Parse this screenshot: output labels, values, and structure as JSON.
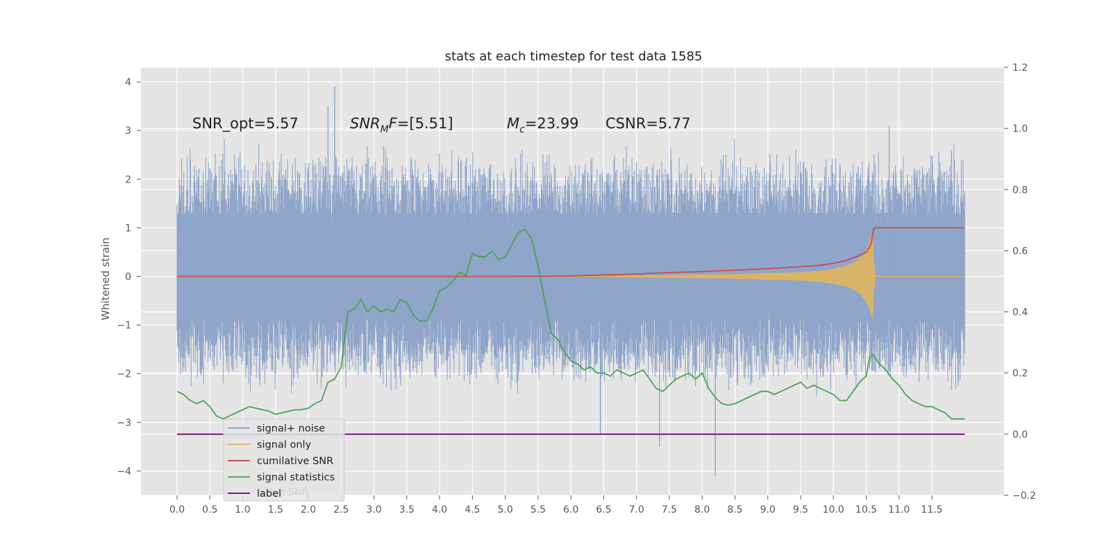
{
  "chart_data": {
    "type": "line",
    "title": "stats at each timestep for test data 1585",
    "ylabel": "Whitened strain",
    "xlabel": "",
    "xlim": [
      -0.55,
      12.6
    ],
    "ylim": [
      -4.5,
      4.3
    ],
    "ylim_right": [
      -0.2,
      1.2
    ],
    "grid": true,
    "legend_position": "lower-left",
    "x_ticks": [
      "0.0",
      "0.5",
      "1.0",
      "1.5",
      "2.0",
      "2.5",
      "3.0",
      "3.5",
      "4.0",
      "4.5",
      "5.0",
      "5.5",
      "6.0",
      "6.5",
      "7.0",
      "7.5",
      "8.0",
      "8.5",
      "9.0",
      "9.5",
      "10.0",
      "10.5",
      "11.0",
      "11.5"
    ],
    "y_ticks_left": [
      "−4",
      "−3",
      "−2",
      "−1",
      "0",
      "1",
      "2",
      "3",
      "4"
    ],
    "y_ticks_right": [
      "−0.2",
      "0.0",
      "0.2",
      "0.4",
      "0.6",
      "0.8",
      "1.0",
      "1.2"
    ],
    "annotations": {
      "snr_opt_label": "SNR_opt=5.57",
      "snr_mf_symbol": "SNR",
      "snr_mf_subscript": "M",
      "snr_mf_symbol2": "F",
      "snr_mf_value": "=[5.51]",
      "mc_symbol": "M",
      "mc_subscript": "c",
      "mc_value": "=23.99",
      "csnr_label": "CSNR=5.77"
    },
    "legend": {
      "items": [
        "signal+ noise",
        "signal only",
        "cumilative SNR",
        "signal statistics",
        "label"
      ],
      "hidden_overlap_text": "lative SNR"
    },
    "colors": {
      "noise": "#8fa5c9",
      "signal": "#e5b55a",
      "cumulative": "#cb4b4b",
      "statistics": "#4aa356",
      "label": "#7a1a7a",
      "axes_bg": "#e5e5e5",
      "grid": "#ffffff"
    },
    "series": [
      {
        "name": "signal+ noise",
        "axis": "left",
        "x_range": [
          0.0,
          12.0
        ],
        "typical_band": [
          -2.0,
          2.3
        ],
        "extremes": [
          [
            2.4,
            3.9
          ],
          [
            2.3,
            3.5
          ],
          [
            7.35,
            -3.5
          ],
          [
            8.2,
            -4.1
          ],
          [
            6.0,
            1.2
          ],
          [
            6.0,
            -1.0
          ],
          [
            6.45,
            -3.25
          ],
          [
            10.85,
            3.1
          ],
          [
            11.8,
            2.6
          ]
        ]
      },
      {
        "name": "signal only",
        "axis": "left",
        "envelope_x": [
          6.5,
          7.5,
          8.5,
          9.0,
          9.5,
          9.8,
          10.0,
          10.2,
          10.3,
          10.4,
          10.5,
          10.55,
          10.58,
          10.6,
          10.62,
          10.65,
          12.0
        ],
        "envelope_amp": [
          0.01,
          0.03,
          0.05,
          0.07,
          0.09,
          0.12,
          0.16,
          0.22,
          0.28,
          0.38,
          0.55,
          0.7,
          0.85,
          0.93,
          0.3,
          0.0,
          0.0
        ]
      },
      {
        "name": "cumilative SNR",
        "axis": "left",
        "x": [
          0.0,
          2.0,
          4.0,
          5.0,
          6.0,
          6.5,
          7.0,
          7.5,
          8.0,
          8.5,
          9.0,
          9.5,
          9.8,
          10.0,
          10.2,
          10.3,
          10.4,
          10.5,
          10.55,
          10.58,
          10.6,
          10.62,
          12.0
        ],
        "y": [
          0.0,
          0.0,
          0.0,
          0.0,
          0.01,
          0.03,
          0.05,
          0.08,
          0.1,
          0.13,
          0.16,
          0.2,
          0.23,
          0.27,
          0.33,
          0.38,
          0.43,
          0.5,
          0.6,
          0.7,
          0.9,
          1.0,
          1.0
        ]
      },
      {
        "name": "signal statistics",
        "axis": "right",
        "x": [
          0.0,
          0.1,
          0.15,
          0.2,
          0.3,
          0.4,
          0.5,
          0.6,
          0.7,
          0.8,
          0.9,
          1.0,
          1.1,
          1.2,
          1.3,
          1.4,
          1.5,
          1.6,
          1.7,
          1.8,
          1.9,
          2.0,
          2.1,
          2.2,
          2.3,
          2.4,
          2.5,
          2.6,
          2.7,
          2.8,
          2.9,
          3.0,
          3.1,
          3.2,
          3.3,
          3.4,
          3.5,
          3.6,
          3.7,
          3.8,
          3.9,
          4.0,
          4.1,
          4.2,
          4.3,
          4.4,
          4.5,
          4.6,
          4.7,
          4.8,
          4.9,
          5.0,
          5.1,
          5.2,
          5.3,
          5.4,
          5.5,
          5.6,
          5.7,
          5.8,
          5.9,
          6.0,
          6.1,
          6.2,
          6.3,
          6.4,
          6.5,
          6.6,
          6.7,
          6.8,
          6.9,
          7.0,
          7.1,
          7.2,
          7.3,
          7.4,
          7.5,
          7.6,
          7.7,
          7.8,
          7.9,
          8.0,
          8.1,
          8.2,
          8.3,
          8.4,
          8.5,
          8.6,
          8.7,
          8.8,
          8.9,
          9.0,
          9.1,
          9.2,
          9.3,
          9.4,
          9.5,
          9.6,
          9.7,
          9.8,
          9.9,
          10.0,
          10.1,
          10.2,
          10.3,
          10.4,
          10.5,
          10.55,
          10.6,
          10.7,
          10.8,
          10.9,
          11.0,
          11.1,
          11.2,
          11.3,
          11.4,
          11.5,
          11.6,
          11.7,
          11.8,
          12.0
        ],
        "y": [
          0.14,
          0.13,
          0.12,
          0.11,
          0.1,
          0.11,
          0.09,
          0.06,
          0.05,
          0.06,
          0.07,
          0.08,
          0.09,
          0.085,
          0.08,
          0.075,
          0.065,
          0.07,
          0.075,
          0.08,
          0.08,
          0.085,
          0.1,
          0.11,
          0.17,
          0.18,
          0.22,
          0.4,
          0.41,
          0.44,
          0.4,
          0.42,
          0.4,
          0.41,
          0.4,
          0.44,
          0.43,
          0.39,
          0.37,
          0.37,
          0.41,
          0.47,
          0.48,
          0.5,
          0.53,
          0.52,
          0.59,
          0.58,
          0.58,
          0.6,
          0.57,
          0.58,
          0.62,
          0.66,
          0.67,
          0.64,
          0.55,
          0.44,
          0.33,
          0.31,
          0.27,
          0.24,
          0.23,
          0.21,
          0.22,
          0.2,
          0.2,
          0.19,
          0.21,
          0.2,
          0.19,
          0.2,
          0.21,
          0.18,
          0.15,
          0.14,
          0.16,
          0.18,
          0.19,
          0.2,
          0.18,
          0.2,
          0.15,
          0.12,
          0.1,
          0.095,
          0.1,
          0.11,
          0.12,
          0.13,
          0.14,
          0.14,
          0.13,
          0.14,
          0.15,
          0.16,
          0.17,
          0.15,
          0.16,
          0.15,
          0.14,
          0.13,
          0.11,
          0.11,
          0.14,
          0.17,
          0.19,
          0.25,
          0.26,
          0.23,
          0.21,
          0.18,
          0.16,
          0.13,
          0.11,
          0.1,
          0.09,
          0.09,
          0.08,
          0.07,
          0.05,
          0.05
        ]
      },
      {
        "name": "label",
        "axis": "right",
        "x": [
          0.0,
          12.0
        ],
        "y": [
          0.0,
          0.0
        ]
      }
    ]
  }
}
